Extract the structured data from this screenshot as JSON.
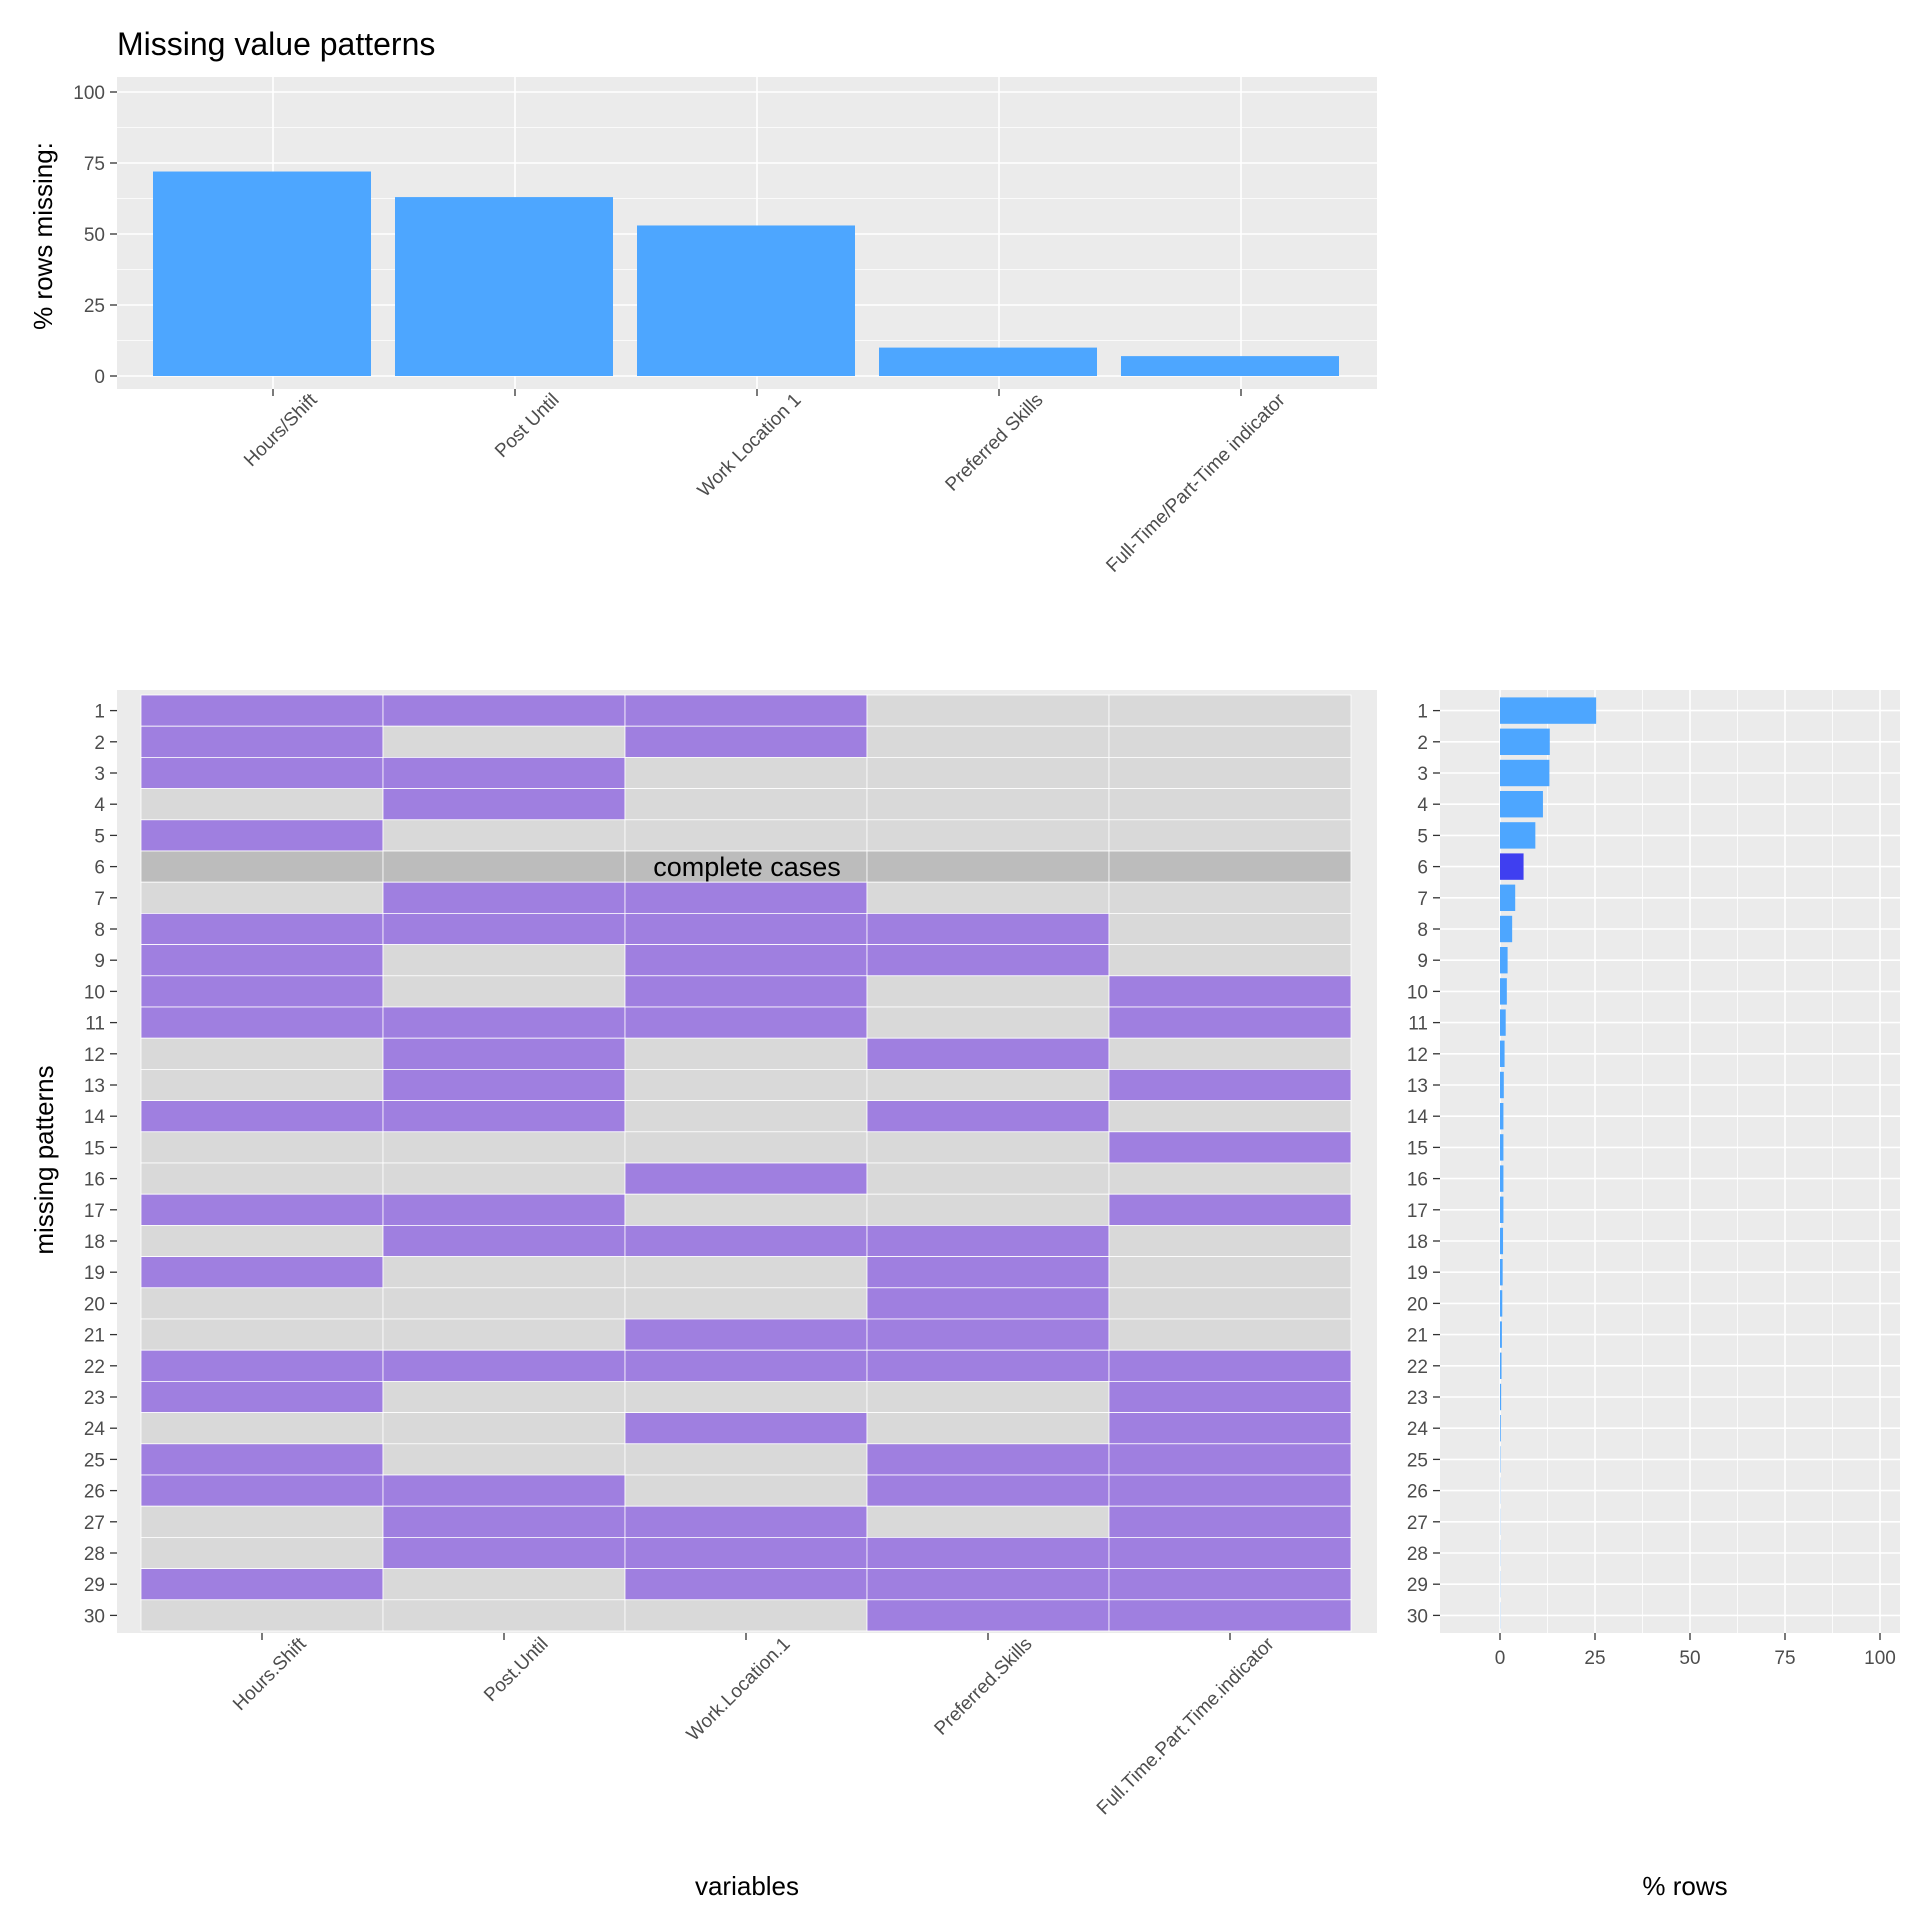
{
  "chart_data": [
    {
      "type": "bar",
      "title": "Missing value patterns",
      "xlabel": "",
      "ylabel": "% rows missing:",
      "ylim": [
        0,
        100
      ],
      "yticks": [
        0,
        25,
        50,
        75,
        100
      ],
      "categories": [
        "Hours/Shift",
        "Post Until",
        "Work Location 1",
        "Preferred Skills",
        "Full-Time/Part-Time indicator"
      ],
      "values": [
        72,
        63,
        53,
        10,
        7
      ],
      "color": "#4da6ff"
    },
    {
      "type": "heatmap",
      "xlabel": "variables",
      "ylabel": "missing patterns",
      "variables": [
        "Hours.Shift",
        "Post.Until",
        "Work.Location.1",
        "Preferred.Skills",
        "Full.Time.Part.Time.indicator"
      ],
      "patterns": [
        "1",
        "2",
        "3",
        "4",
        "5",
        "6",
        "7",
        "8",
        "9",
        "10",
        "11",
        "12",
        "13",
        "14",
        "15",
        "16",
        "17",
        "18",
        "19",
        "20",
        "21",
        "22",
        "23",
        "24",
        "25",
        "26",
        "27",
        "28",
        "29",
        "30"
      ],
      "matrix": [
        [
          1,
          1,
          1,
          0,
          0
        ],
        [
          1,
          0,
          1,
          0,
          0
        ],
        [
          1,
          1,
          0,
          0,
          0
        ],
        [
          0,
          1,
          0,
          0,
          0
        ],
        [
          1,
          0,
          0,
          0,
          0
        ],
        [
          0,
          0,
          0,
          0,
          0
        ],
        [
          0,
          1,
          1,
          0,
          0
        ],
        [
          1,
          1,
          1,
          1,
          0
        ],
        [
          1,
          0,
          1,
          1,
          0
        ],
        [
          1,
          0,
          1,
          0,
          1
        ],
        [
          1,
          1,
          1,
          0,
          1
        ],
        [
          0,
          1,
          0,
          1,
          0
        ],
        [
          0,
          1,
          0,
          0,
          1
        ],
        [
          1,
          1,
          0,
          1,
          0
        ],
        [
          0,
          0,
          0,
          0,
          1
        ],
        [
          0,
          0,
          1,
          0,
          0
        ],
        [
          1,
          1,
          0,
          0,
          1
        ],
        [
          0,
          1,
          1,
          1,
          0
        ],
        [
          1,
          0,
          0,
          1,
          0
        ],
        [
          0,
          0,
          0,
          1,
          0
        ],
        [
          0,
          0,
          1,
          1,
          0
        ],
        [
          1,
          1,
          1,
          1,
          1
        ],
        [
          1,
          0,
          0,
          0,
          1
        ],
        [
          0,
          0,
          1,
          0,
          1
        ],
        [
          1,
          0,
          0,
          1,
          1
        ],
        [
          1,
          1,
          0,
          1,
          1
        ],
        [
          0,
          1,
          1,
          0,
          1
        ],
        [
          0,
          1,
          1,
          1,
          1
        ],
        [
          1,
          0,
          1,
          1,
          1
        ],
        [
          0,
          0,
          0,
          1,
          1
        ]
      ],
      "complete_case_row": 6,
      "annotation": "complete cases",
      "colors": {
        "missing": "#9f7fe0",
        "present": "#d9d9d9",
        "complete": "#bcbcbc"
      }
    },
    {
      "type": "bar",
      "orientation": "horizontal",
      "xlabel": "% rows",
      "ylabel": "",
      "xlim": [
        0,
        100
      ],
      "xticks": [
        0,
        25,
        50,
        75,
        100
      ],
      "categories": [
        "1",
        "2",
        "3",
        "4",
        "5",
        "6",
        "7",
        "8",
        "9",
        "10",
        "11",
        "12",
        "13",
        "14",
        "15",
        "16",
        "17",
        "18",
        "19",
        "20",
        "21",
        "22",
        "23",
        "24",
        "25",
        "26",
        "27",
        "28",
        "29",
        "30"
      ],
      "values": [
        25.3,
        13.1,
        13.0,
        11.3,
        9.3,
        6.2,
        4.0,
        3.2,
        2.0,
        1.8,
        1.5,
        1.2,
        1.0,
        0.9,
        0.9,
        0.9,
        0.9,
        0.8,
        0.7,
        0.6,
        0.5,
        0.4,
        0.3,
        0.2,
        0.1,
        0.05,
        0.05,
        0.05,
        0.05,
        0.05
      ],
      "colors": {
        "bar": "#4da6ff",
        "complete": "#3f3ff0"
      }
    }
  ]
}
